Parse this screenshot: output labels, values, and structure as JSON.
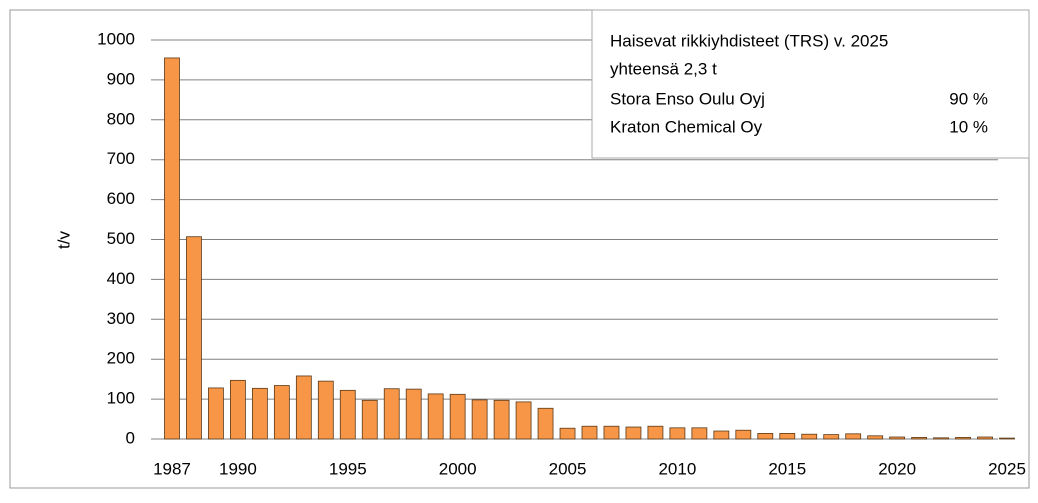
{
  "chart_data": {
    "type": "bar",
    "y_label": "t/v",
    "categories": [
      "1987",
      null,
      null,
      "1990",
      null,
      null,
      null,
      null,
      "1995",
      null,
      null,
      null,
      null,
      "2000",
      null,
      null,
      null,
      null,
      "2005",
      null,
      null,
      null,
      null,
      "2010",
      null,
      null,
      null,
      null,
      "2015",
      null,
      null,
      null,
      null,
      "2020",
      null,
      null,
      null,
      null,
      "2025"
    ],
    "values": [
      955,
      507,
      128,
      147,
      127,
      134,
      158,
      145,
      122,
      97,
      126,
      125,
      113,
      112,
      98,
      97,
      93,
      77,
      27,
      32,
      32,
      30,
      32,
      28,
      28,
      20,
      22,
      14,
      14,
      12,
      11,
      13,
      8,
      5,
      4,
      3,
      4,
      5,
      2.3
    ],
    "color": "#f79646",
    "ylim": [
      0,
      1000
    ],
    "yticks": [
      0,
      100,
      200,
      300,
      400,
      500,
      600,
      700,
      800,
      900,
      1000
    ],
    "grid": true,
    "annotation": {
      "title": "Haisevat rikkiyhdisteet (TRS) v. 2025",
      "subtitle": "yhteensä 2,3 t",
      "rows": [
        {
          "name": "Stora Enso Oulu Oyj",
          "share": "90 %"
        },
        {
          "name": "Kraton Chemical Oy",
          "share": "10 %"
        }
      ]
    }
  }
}
